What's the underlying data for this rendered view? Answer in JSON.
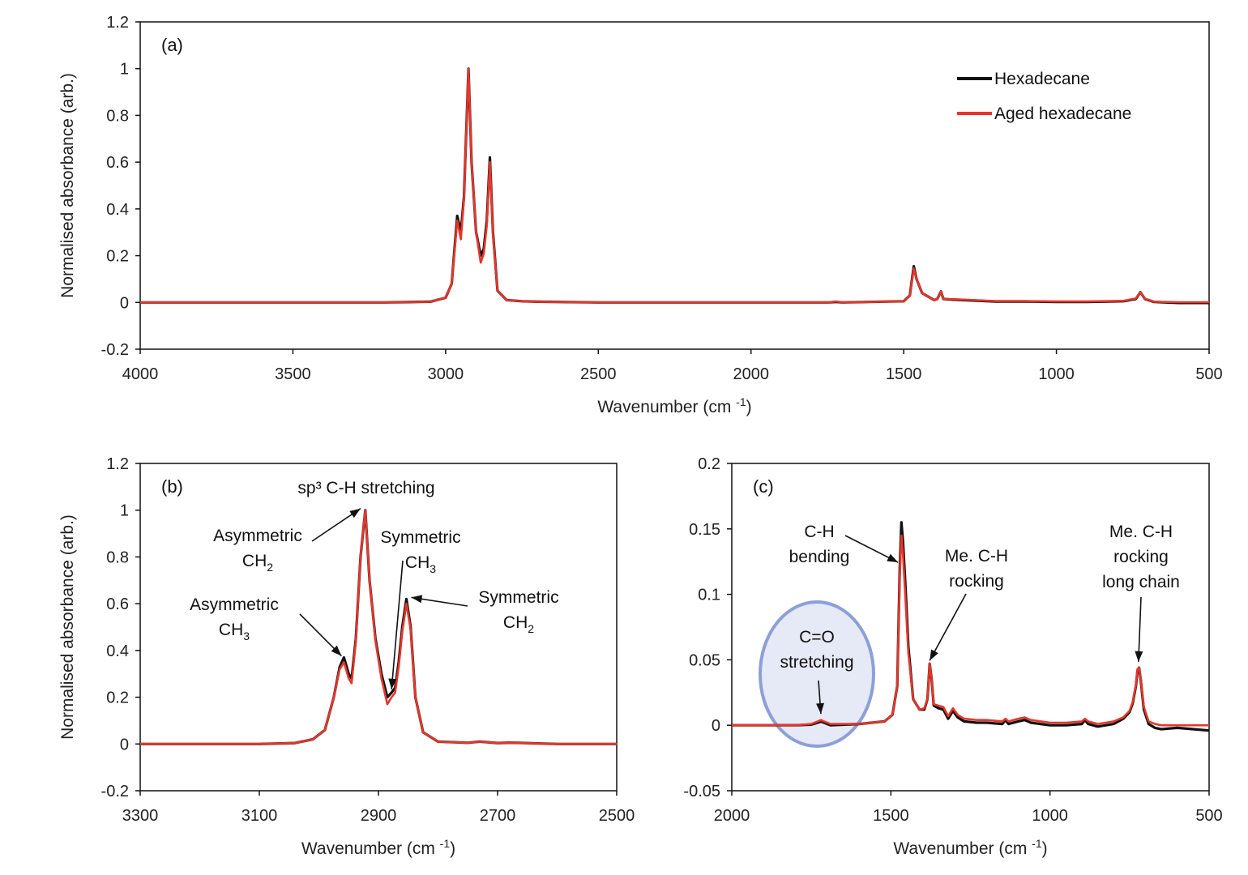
{
  "colors": {
    "hexadecane": "#111111",
    "aged": "#e8352a",
    "highlight_fill": "#e6e9f6",
    "highlight_stroke": "#8d9fd6"
  },
  "legend": {
    "items": [
      "Hexadecane",
      "Aged hexadecane"
    ]
  },
  "chart_data": [
    {
      "panel": "(a)",
      "type": "line",
      "xlabel": "Wavenumber (cm -1)",
      "ylabel": "Normalised absorbance (arb.)",
      "xlim": [
        4000,
        500
      ],
      "ylim": [
        -0.2,
        1.2
      ],
      "xticks": [
        4000,
        3500,
        3000,
        2500,
        2000,
        1500,
        1000,
        500
      ],
      "yticks": [
        -0.2,
        0,
        0.2,
        0.4,
        0.6,
        0.8,
        1,
        1.2
      ],
      "ytick_labels": [
        "-0.2",
        "0",
        "0.2",
        "0.4",
        "0.6",
        "0.8",
        "1",
        "1.2"
      ],
      "grid": false,
      "legend_position": "top-right",
      "series": [
        {
          "name": "Hexadecane",
          "x": [
            4000,
            3600,
            3200,
            3050,
            3000,
            2980,
            2962,
            2950,
            2940,
            2925,
            2915,
            2900,
            2885,
            2875,
            2865,
            2855,
            2845,
            2830,
            2800,
            2750,
            2700,
            2500,
            2000,
            1750,
            1720,
            1700,
            1500,
            1480,
            1467,
            1458,
            1440,
            1400,
            1390,
            1378,
            1370,
            1340,
            1305,
            1200,
            1100,
            1000,
            900,
            780,
            740,
            725,
            710,
            680,
            600,
            500
          ],
          "y": [
            0,
            0,
            0,
            0.003,
            0.02,
            0.08,
            0.37,
            0.3,
            0.45,
            1.0,
            0.6,
            0.3,
            0.2,
            0.23,
            0.35,
            0.62,
            0.3,
            0.05,
            0.01,
            0.005,
            0.003,
            0,
            0,
            0,
            0.002,
            0,
            0.005,
            0.03,
            0.155,
            0.1,
            0.04,
            0.01,
            0.015,
            0.047,
            0.015,
            0.012,
            0.01,
            0.004,
            0.004,
            0.002,
            0.002,
            0.005,
            0.015,
            0.044,
            0.015,
            0.002,
            -0.002,
            -0.002
          ]
        },
        {
          "name": "Aged hexadecane",
          "x": [
            4000,
            3600,
            3200,
            3050,
            3000,
            2980,
            2962,
            2950,
            2940,
            2925,
            2915,
            2900,
            2885,
            2875,
            2865,
            2855,
            2845,
            2830,
            2800,
            2750,
            2700,
            2500,
            2000,
            1750,
            1720,
            1700,
            1500,
            1480,
            1467,
            1458,
            1440,
            1400,
            1390,
            1378,
            1370,
            1340,
            1305,
            1200,
            1100,
            1000,
            900,
            780,
            740,
            725,
            710,
            680,
            600,
            500
          ],
          "y": [
            0,
            0,
            0,
            0.003,
            0.02,
            0.08,
            0.35,
            0.27,
            0.44,
            1.0,
            0.6,
            0.3,
            0.17,
            0.21,
            0.33,
            0.6,
            0.29,
            0.05,
            0.01,
            0.005,
            0.003,
            0,
            0,
            0,
            0.004,
            0,
            0.005,
            0.03,
            0.145,
            0.1,
            0.04,
            0.01,
            0.015,
            0.047,
            0.015,
            0.014,
            0.012,
            0.006,
            0.006,
            0.004,
            0.004,
            0.007,
            0.017,
            0.044,
            0.016,
            0.003,
            0.001,
            0.001
          ]
        }
      ],
      "annotations": []
    },
    {
      "panel": "(b)",
      "type": "line",
      "title": "sp³ C-H stretching",
      "xlabel": "Wavenumber (cm -1)",
      "ylabel": "Normalised absorbance (arb.)",
      "xlim": [
        3300,
        2500
      ],
      "ylim": [
        -0.2,
        1.2
      ],
      "xticks": [
        3300,
        3100,
        2900,
        2700,
        2500
      ],
      "yticks": [
        -0.2,
        0,
        0.2,
        0.4,
        0.6,
        0.8,
        1,
        1.2
      ],
      "ytick_labels": [
        "-0.2",
        "0",
        "0.2",
        "0.4",
        "0.6",
        "0.8",
        "1",
        "1.2"
      ],
      "grid": false,
      "series": [
        {
          "name": "Hexadecane",
          "x": [
            3300,
            3100,
            3040,
            3010,
            2990,
            2975,
            2965,
            2958,
            2950,
            2945,
            2938,
            2930,
            2922,
            2915,
            2905,
            2895,
            2885,
            2878,
            2872,
            2866,
            2860,
            2853,
            2846,
            2838,
            2825,
            2800,
            2750,
            2730,
            2700,
            2680,
            2600,
            2500
          ],
          "y": [
            0,
            0,
            0.004,
            0.02,
            0.06,
            0.2,
            0.33,
            0.37,
            0.3,
            0.28,
            0.45,
            0.8,
            1.0,
            0.7,
            0.45,
            0.3,
            0.2,
            0.22,
            0.24,
            0.35,
            0.5,
            0.62,
            0.5,
            0.2,
            0.05,
            0.01,
            0.005,
            0.01,
            0.004,
            0.006,
            0,
            0
          ]
        },
        {
          "name": "Aged hexadecane",
          "x": [
            3300,
            3100,
            3040,
            3010,
            2990,
            2975,
            2965,
            2958,
            2950,
            2945,
            2938,
            2930,
            2922,
            2915,
            2905,
            2895,
            2885,
            2878,
            2872,
            2866,
            2860,
            2853,
            2846,
            2838,
            2825,
            2800,
            2750,
            2730,
            2700,
            2680,
            2600,
            2500
          ],
          "y": [
            0,
            0,
            0.004,
            0.02,
            0.06,
            0.2,
            0.32,
            0.35,
            0.28,
            0.26,
            0.44,
            0.8,
            1.0,
            0.7,
            0.44,
            0.28,
            0.17,
            0.2,
            0.22,
            0.33,
            0.48,
            0.6,
            0.49,
            0.2,
            0.05,
            0.01,
            0.005,
            0.01,
            0.004,
            0.006,
            0,
            0
          ]
        }
      ],
      "annotations": [
        {
          "lines": [
            "Asymmetric",
            "CH|2"
          ],
          "target": [
            2922,
            1.0
          ]
        },
        {
          "lines": [
            "Symmetric",
            "CH|3"
          ],
          "target": [
            2878,
            0.22
          ]
        },
        {
          "lines": [
            "Asymmetric",
            "CH|3"
          ],
          "target": [
            2958,
            0.37
          ]
        },
        {
          "lines": [
            "Symmetric",
            "CH|2"
          ],
          "target": [
            2853,
            0.62
          ]
        }
      ]
    },
    {
      "panel": "(c)",
      "type": "line",
      "xlabel": "Wavenumber (cm -1)",
      "xlim": [
        2000,
        500
      ],
      "ylim": [
        -0.05,
        0.2
      ],
      "xticks": [
        2000,
        1500,
        1000,
        500
      ],
      "yticks": [
        -0.05,
        0,
        0.05,
        0.1,
        0.15,
        0.2
      ],
      "ytick_labels": [
        "-0.05",
        "0",
        "0.05",
        "0.1",
        "0.15",
        "0.2"
      ],
      "grid": false,
      "series": [
        {
          "name": "Hexadecane",
          "x": [
            2000,
            1800,
            1750,
            1730,
            1720,
            1710,
            1690,
            1600,
            1520,
            1495,
            1480,
            1472,
            1467,
            1462,
            1455,
            1445,
            1430,
            1410,
            1395,
            1385,
            1378,
            1372,
            1365,
            1350,
            1335,
            1320,
            1305,
            1290,
            1270,
            1230,
            1200,
            1150,
            1140,
            1130,
            1100,
            1080,
            1060,
            1000,
            950,
            900,
            890,
            880,
            850,
            800,
            770,
            750,
            740,
            730,
            725,
            720,
            715,
            705,
            690,
            670,
            650,
            600,
            550,
            500
          ],
          "y": [
            0,
            0,
            0.0005,
            0.002,
            0.003,
            0.002,
            0,
            0.001,
            0.003,
            0.008,
            0.03,
            0.12,
            0.155,
            0.14,
            0.11,
            0.06,
            0.02,
            0.012,
            0.012,
            0.02,
            0.047,
            0.035,
            0.015,
            0.013,
            0.012,
            0.005,
            0.011,
            0.006,
            0.003,
            0.002,
            0.002,
            0.001,
            0.004,
            0.001,
            0.003,
            0.004,
            0.002,
            0,
            0,
            0.001,
            0.004,
            0.001,
            -0.001,
            0.001,
            0.005,
            0.01,
            0.017,
            0.03,
            0.042,
            0.044,
            0.035,
            0.012,
            0.001,
            -0.002,
            -0.003,
            -0.002,
            -0.003,
            -0.004
          ]
        },
        {
          "name": "Aged hexadecane",
          "x": [
            2000,
            1800,
            1750,
            1730,
            1720,
            1710,
            1690,
            1600,
            1520,
            1495,
            1480,
            1472,
            1467,
            1462,
            1455,
            1445,
            1430,
            1410,
            1395,
            1385,
            1378,
            1372,
            1365,
            1350,
            1335,
            1320,
            1305,
            1290,
            1270,
            1230,
            1200,
            1150,
            1140,
            1130,
            1100,
            1080,
            1060,
            1000,
            950,
            900,
            890,
            880,
            850,
            800,
            770,
            750,
            740,
            730,
            725,
            720,
            715,
            705,
            690,
            670,
            650,
            600,
            550,
            500
          ],
          "y": [
            0,
            0,
            0.001,
            0.003,
            0.004,
            0.003,
            0.001,
            0.001,
            0.003,
            0.008,
            0.03,
            0.115,
            0.145,
            0.13,
            0.1,
            0.055,
            0.02,
            0.012,
            0.013,
            0.02,
            0.047,
            0.035,
            0.016,
            0.015,
            0.014,
            0.007,
            0.013,
            0.008,
            0.005,
            0.004,
            0.004,
            0.003,
            0.005,
            0.003,
            0.005,
            0.006,
            0.004,
            0.002,
            0.002,
            0.003,
            0.005,
            0.003,
            0.001,
            0.003,
            0.006,
            0.011,
            0.018,
            0.031,
            0.043,
            0.044,
            0.036,
            0.014,
            0.003,
            0.001,
            0,
            0,
            0,
            0
          ]
        }
      ],
      "annotations": [
        {
          "lines": [
            "C-H",
            "bending"
          ],
          "target": [
            1470,
            0.122
          ]
        },
        {
          "lines": [
            "Me. C-H",
            "rocking"
          ],
          "target": [
            1378,
            0.047
          ]
        },
        {
          "lines": [
            "Me. C-H",
            "rocking",
            "long chain"
          ],
          "target": [
            722,
            0.046
          ]
        },
        {
          "lines": [
            "C=O",
            "stretching"
          ],
          "target": [
            1720,
            0.005
          ]
        }
      ]
    }
  ]
}
